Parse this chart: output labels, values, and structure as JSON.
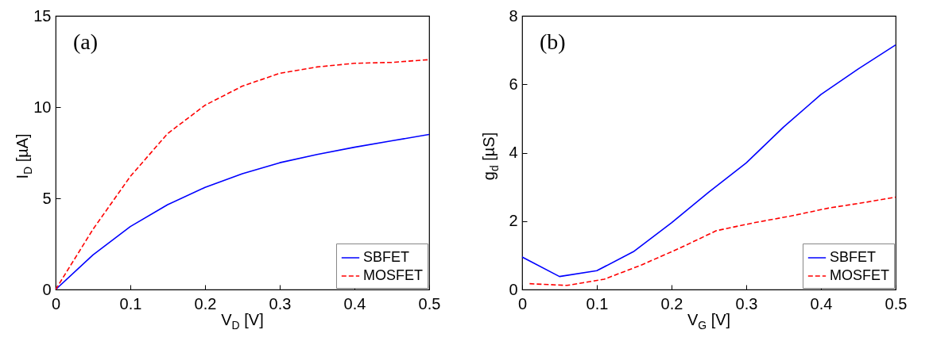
{
  "chart_data": [
    {
      "type": "line",
      "xlabel": "V$_{D}$ [V]",
      "ylabel": "I$_{D}$ [µA]",
      "annotations": [
        "(a)"
      ],
      "xlim": [
        0,
        0.5
      ],
      "xticks": [
        0,
        0.1,
        0.2,
        0.3,
        0.4,
        0.5
      ],
      "ylim": [
        0,
        15
      ],
      "yticks": [
        0,
        5,
        10,
        15
      ],
      "legend": "bottom right",
      "x": [
        0,
        0.05,
        0.1,
        0.15,
        0.2,
        0.25,
        0.3,
        0.35,
        0.4,
        0.45,
        0.5
      ],
      "series": [
        {
          "name": "SBFET",
          "color": "#0000ff",
          "line_style": "solid",
          "values": [
            0,
            1.9,
            3.45,
            4.65,
            5.6,
            6.35,
            6.95,
            7.4,
            7.8,
            8.15,
            8.5
          ]
        },
        {
          "name": "MOSFET",
          "color": "#ff0000",
          "line_style": "dashed",
          "values": [
            0,
            3.3,
            6.2,
            8.55,
            10.1,
            11.15,
            11.85,
            12.2,
            12.4,
            12.45,
            12.6
          ]
        }
      ]
    },
    {
      "type": "line",
      "xlabel": "V$_{G}$ [V]",
      "ylabel": "g$_{d}$ [µS]",
      "annotations": [
        "(b)"
      ],
      "xlim": [
        0,
        0.5
      ],
      "xticks": [
        0,
        0.1,
        0.2,
        0.3,
        0.4,
        0.5
      ],
      "ylim": [
        0,
        8
      ],
      "yticks": [
        0,
        2,
        4,
        6,
        8
      ],
      "legend": "bottom right",
      "x": [
        0,
        0.05,
        0.1,
        0.15,
        0.2,
        0.25,
        0.3,
        0.35,
        0.4,
        0.45,
        0.5
      ],
      "series": [
        {
          "name": "SBFET",
          "color": "#0000ff",
          "line_style": "solid",
          "values": [
            0.95,
            0.38,
            0.55,
            1.12,
            1.95,
            2.85,
            3.7,
            4.75,
            5.7,
            6.45,
            7.15
          ]
        },
        {
          "name": "MOSFET",
          "color": "#ff0000",
          "line_style": "dashed",
          "x": [
            0.01,
            0.06,
            0.11,
            0.16,
            0.21,
            0.26,
            0.31,
            0.36,
            0.41,
            0.46,
            0.5
          ],
          "values": [
            0.17,
            0.12,
            0.3,
            0.72,
            1.2,
            1.72,
            1.95,
            2.15,
            2.38,
            2.55,
            2.7
          ]
        }
      ]
    }
  ]
}
